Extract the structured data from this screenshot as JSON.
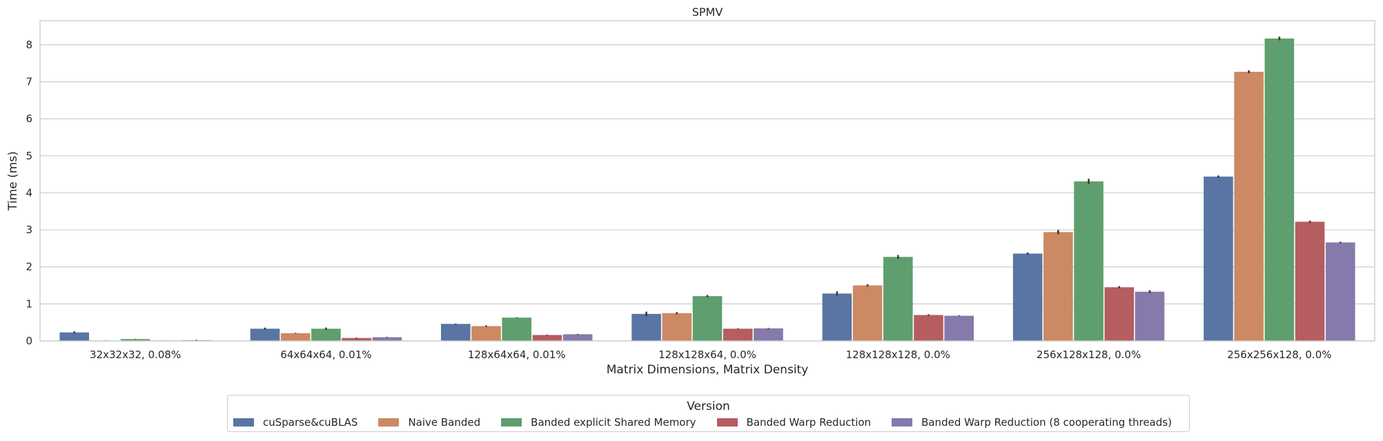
{
  "chart_data": {
    "type": "bar",
    "title": "SPMV",
    "xlabel": "Matrix Dimensions, Matrix Density",
    "ylabel": "Time (ms)",
    "ylim": [
      0,
      8.65
    ],
    "yticks": [
      0,
      1,
      2,
      3,
      4,
      5,
      6,
      7,
      8
    ],
    "grid": true,
    "legend_title": "Version",
    "legend_position": "bottom-center",
    "categories": [
      "32x32x32, 0.08%",
      "64x64x64, 0.01%",
      "128x64x64, 0.01%",
      "128x128x64, 0.0%",
      "128x128x128, 0.0%",
      "256x128x128, 0.0%",
      "256x256x128, 0.0%"
    ],
    "series": [
      {
        "name": "cuSparse&cuBLAS",
        "color": "#5975a4",
        "values": [
          0.23,
          0.33,
          0.46,
          0.73,
          1.28,
          2.36,
          4.44
        ],
        "err": [
          0.03,
          0.03,
          0.01,
          0.06,
          0.06,
          0.03,
          0.03
        ]
      },
      {
        "name": "Naive Banded",
        "color": "#cc8963",
        "values": [
          0.01,
          0.21,
          0.4,
          0.75,
          1.5,
          2.94,
          7.27
        ],
        "err": [
          0.005,
          0.01,
          0.02,
          0.03,
          0.03,
          0.06,
          0.04
        ]
      },
      {
        "name": "Banded explicit Shared Memory",
        "color": "#5f9e6e",
        "values": [
          0.05,
          0.33,
          0.63,
          1.21,
          2.27,
          4.31,
          8.17
        ],
        "err": [
          0.005,
          0.03,
          0.01,
          0.03,
          0.05,
          0.07,
          0.05
        ]
      },
      {
        "name": "Banded Warp Reduction",
        "color": "#b55d60",
        "values": [
          0.01,
          0.08,
          0.16,
          0.33,
          0.7,
          1.45,
          3.22
        ],
        "err": [
          0.005,
          0.01,
          0.01,
          0.01,
          0.02,
          0.03,
          0.03
        ]
      },
      {
        "name": "Banded Warp Reduction (8 cooperating threads)",
        "color": "#857aab",
        "values": [
          0.02,
          0.1,
          0.18,
          0.34,
          0.68,
          1.33,
          2.66
        ],
        "err": [
          0.01,
          0.01,
          0.01,
          0.01,
          0.01,
          0.04,
          0.02
        ]
      }
    ]
  }
}
